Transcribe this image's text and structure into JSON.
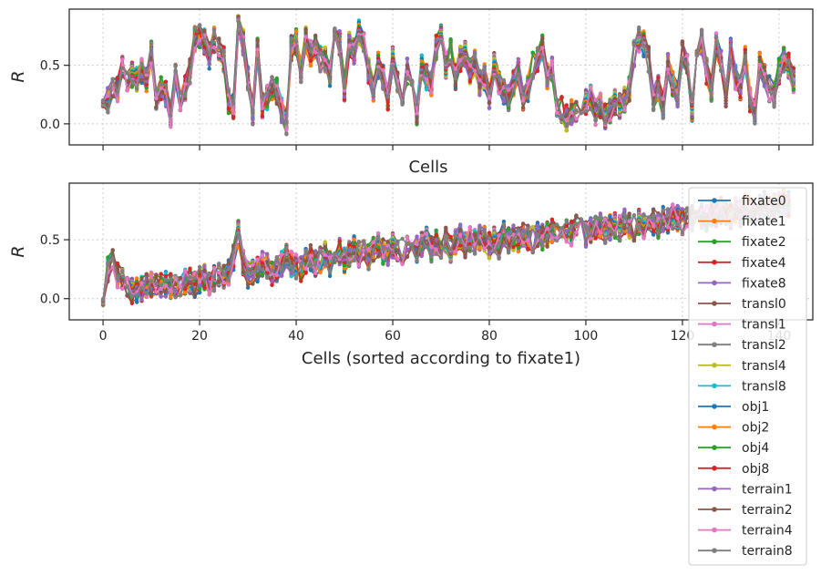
{
  "chart_data": [
    {
      "type": "line",
      "panel": "top",
      "xlabel": "Cells",
      "ylabel": "R",
      "xlim": [
        -7,
        147
      ],
      "ylim": [
        -0.18,
        0.98
      ],
      "yticks": [
        0.0,
        0.5
      ],
      "ytick_labels": [
        "0.0",
        "0.5"
      ],
      "xticks": [
        0,
        20,
        40,
        60,
        80,
        100,
        120,
        140
      ],
      "xtick_labels_visible": false,
      "grid": true,
      "series_source": "profile_top"
    },
    {
      "type": "line",
      "panel": "bottom",
      "xlabel": "Cells (sorted according to fixate1)",
      "ylabel": "R",
      "xlim": [
        -7,
        147
      ],
      "ylim": [
        -0.18,
        0.98
      ],
      "yticks": [
        0.0,
        0.5
      ],
      "ytick_labels": [
        "0.0",
        "0.5"
      ],
      "xticks": [
        0,
        20,
        40,
        60,
        80,
        100,
        120,
        140
      ],
      "xtick_labels": [
        "0",
        "20",
        "40",
        "60",
        "80",
        "100",
        "120",
        "140"
      ],
      "grid": true,
      "series_source": "profile_bottom"
    }
  ],
  "series": [
    {
      "name": "fixate0",
      "color": "#1f77b4"
    },
    {
      "name": "fixate1",
      "color": "#ff7f0e"
    },
    {
      "name": "fixate2",
      "color": "#2ca02c"
    },
    {
      "name": "fixate4",
      "color": "#d62728"
    },
    {
      "name": "fixate8",
      "color": "#9467bd"
    },
    {
      "name": "transl0",
      "color": "#8c564b"
    },
    {
      "name": "transl1",
      "color": "#e377c2"
    },
    {
      "name": "transl2",
      "color": "#7f7f7f"
    },
    {
      "name": "transl4",
      "color": "#bcbd22"
    },
    {
      "name": "transl8",
      "color": "#17becf"
    },
    {
      "name": "obj1",
      "color": "#1f77b4"
    },
    {
      "name": "obj2",
      "color": "#ff7f0e"
    },
    {
      "name": "obj4",
      "color": "#2ca02c"
    },
    {
      "name": "obj8",
      "color": "#d62728"
    },
    {
      "name": "terrain1",
      "color": "#9467bd"
    },
    {
      "name": "terrain2",
      "color": "#8c564b"
    },
    {
      "name": "terrain4",
      "color": "#e377c2"
    },
    {
      "name": "terrain8",
      "color": "#7f7f7f"
    }
  ],
  "profile_top": [
    0.12,
    0.2,
    0.33,
    0.3,
    0.5,
    0.35,
    0.42,
    0.38,
    0.45,
    0.38,
    0.6,
    0.22,
    0.3,
    0.25,
    0.08,
    0.4,
    0.18,
    0.3,
    0.45,
    0.72,
    0.75,
    0.7,
    0.58,
    0.72,
    0.65,
    0.55,
    0.2,
    0.15,
    0.85,
    0.7,
    0.4,
    0.1,
    0.62,
    0.15,
    0.22,
    0.3,
    0.28,
    0.12,
    0.02,
    0.65,
    0.7,
    0.45,
    0.72,
    0.6,
    0.68,
    0.55,
    0.55,
    0.42,
    0.75,
    0.7,
    0.3,
    0.68,
    0.62,
    0.78,
    0.7,
    0.45,
    0.3,
    0.5,
    0.4,
    0.22,
    0.55,
    0.38,
    0.18,
    0.45,
    0.3,
    0.1,
    0.48,
    0.4,
    0.35,
    0.65,
    0.75,
    0.5,
    0.62,
    0.4,
    0.55,
    0.6,
    0.45,
    0.52,
    0.35,
    0.4,
    0.22,
    0.5,
    0.35,
    0.28,
    0.22,
    0.35,
    0.45,
    0.2,
    0.3,
    0.5,
    0.55,
    0.65,
    0.4,
    0.48,
    0.15,
    0.12,
    0.05,
    0.1,
    0.08,
    0.2,
    0.18,
    0.22,
    0.1,
    0.15,
    0.06,
    0.12,
    0.18,
    0.15,
    0.2,
    0.3,
    0.6,
    0.72,
    0.68,
    0.55,
    0.2,
    0.3,
    0.15,
    0.5,
    0.35,
    0.25,
    0.6,
    0.5,
    0.1,
    0.55,
    0.7,
    0.45,
    0.3,
    0.68,
    0.55,
    0.25,
    0.62,
    0.4,
    0.3,
    0.55,
    0.2,
    0.1,
    0.5,
    0.4,
    0.3,
    0.25,
    0.45,
    0.55,
    0.5,
    0.38
  ],
  "profile_bottom": [
    0.05,
    0.25,
    0.35,
    0.2,
    0.15,
    0.08,
    0.07,
    0.08,
    0.09,
    0.1,
    0.12,
    0.1,
    0.11,
    0.12,
    0.1,
    0.12,
    0.13,
    0.15,
    0.15,
    0.12,
    0.16,
    0.18,
    0.14,
    0.17,
    0.2,
    0.18,
    0.22,
    0.35,
    0.55,
    0.3,
    0.2,
    0.22,
    0.25,
    0.3,
    0.28,
    0.2,
    0.25,
    0.3,
    0.35,
    0.3,
    0.28,
    0.25,
    0.32,
    0.35,
    0.3,
    0.33,
    0.38,
    0.3,
    0.35,
    0.4,
    0.33,
    0.38,
    0.42,
    0.38,
    0.4,
    0.35,
    0.42,
    0.45,
    0.4,
    0.38,
    0.45,
    0.42,
    0.4,
    0.45,
    0.48,
    0.42,
    0.45,
    0.5,
    0.42,
    0.48,
    0.45,
    0.5,
    0.42,
    0.48,
    0.52,
    0.45,
    0.5,
    0.48,
    0.52,
    0.5,
    0.45,
    0.5,
    0.45,
    0.55,
    0.5,
    0.52,
    0.5,
    0.55,
    0.52,
    0.5,
    0.55,
    0.52,
    0.55,
    0.58,
    0.52,
    0.55,
    0.58,
    0.55,
    0.6,
    0.58,
    0.55,
    0.58,
    0.6,
    0.62,
    0.58,
    0.6,
    0.62,
    0.6,
    0.65,
    0.62,
    0.6,
    0.65,
    0.62,
    0.68,
    0.65,
    0.62,
    0.68,
    0.65,
    0.7,
    0.68,
    0.65,
    0.7,
    0.68,
    0.72,
    0.7,
    0.68,
    0.72,
    0.7,
    0.75,
    0.72,
    0.7,
    0.75,
    0.72,
    0.78,
    0.75,
    0.72,
    0.78,
    0.8,
    0.75,
    0.78,
    0.8,
    0.82,
    0.8
  ]
}
